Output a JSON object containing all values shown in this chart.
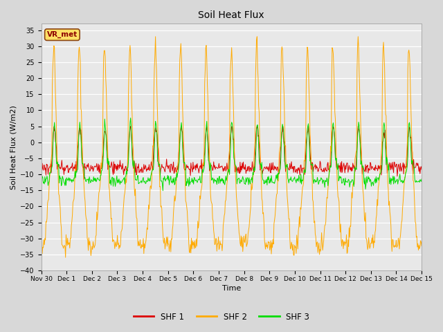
{
  "title": "Soil Heat Flux",
  "ylabel": "Soil Heat Flux (W/m2)",
  "xlabel": "Time",
  "ylim": [
    -40,
    37
  ],
  "yticks": [
    -40,
    -35,
    -30,
    -25,
    -20,
    -15,
    -10,
    -5,
    0,
    5,
    10,
    15,
    20,
    25,
    30,
    35
  ],
  "colors": {
    "SHF 1": "#dd0000",
    "SHF 2": "#ffaa00",
    "SHF 3": "#00dd00"
  },
  "legend_labels": [
    "SHF 1",
    "SHF 2",
    "SHF 3"
  ],
  "watermark": "VR_met",
  "background_color": "#d8d8d8",
  "plot_bg_color": "#e8e8e8",
  "x_start": 0,
  "x_end": 360,
  "xtick_positions": [
    0,
    24,
    48,
    72,
    96,
    120,
    144,
    168,
    192,
    216,
    240,
    264,
    288,
    312,
    336,
    360
  ],
  "xtick_labels": [
    "Nov 30",
    "Dec 1 ",
    "Dec 2",
    "Dec 3",
    "Dec 4",
    "Dec 5",
    "Dec 6",
    "Dec 7",
    "Dec 8",
    "Dec 9",
    "Dec 10",
    "Dec 11",
    "Dec 12",
    "Dec 13",
    "Dec 14",
    "Dec 15"
  ]
}
